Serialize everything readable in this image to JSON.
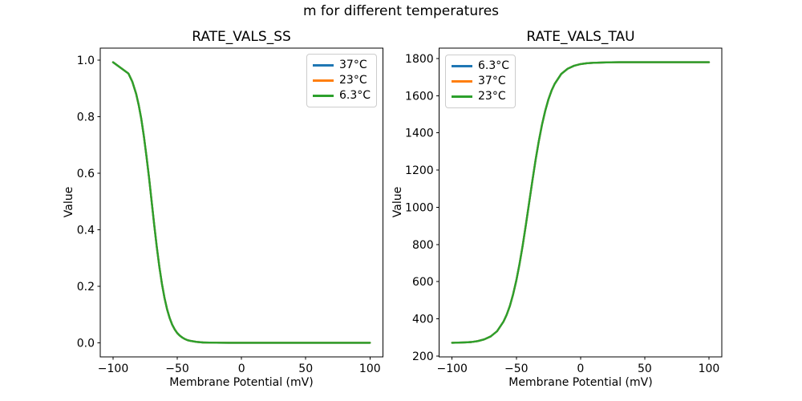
{
  "figure": {
    "suptitle": "m for different temperatures",
    "background_color": "#ffffff",
    "text_color": "#000000",
    "legend_border_color": "#cccccc"
  },
  "chart_data": [
    {
      "type": "line",
      "title": "RATE_VALS_SS",
      "xlabel": "Membrane Potential (mV)",
      "ylabel": "Value",
      "xlim": [
        -110,
        110
      ],
      "ylim": [
        -0.05,
        1.043
      ],
      "grid": false,
      "xticks": [
        -100,
        -50,
        0,
        50,
        100
      ],
      "xtick_labels": [
        "−100",
        "−50",
        "0",
        "50",
        "100"
      ],
      "yticks": [
        0.0,
        0.2,
        0.4,
        0.6,
        0.8,
        1.0
      ],
      "ytick_labels": [
        "0.0",
        "0.2",
        "0.4",
        "0.6",
        "0.8",
        "1.0"
      ],
      "legend": {
        "position": "upper-right",
        "entries": [
          {
            "label": "37°C",
            "color": "#1f77b4"
          },
          {
            "label": "23°C",
            "color": "#ff7f0e"
          },
          {
            "label": "6.3°C",
            "color": "#2ca02c"
          }
        ]
      },
      "overlap_note": "All three temperature curves coincide exactly; the green (last plotted) curve is visible.",
      "x": [
        -100,
        -88,
        -85,
        -82,
        -80,
        -78,
        -76,
        -74,
        -72,
        -70,
        -68,
        -66,
        -64,
        -62,
        -60,
        -58,
        -56,
        -54,
        -52,
        -50,
        -48,
        -46,
        -44,
        -42,
        -40,
        -35,
        -30,
        -25,
        -20,
        -10,
        0,
        20,
        40,
        60,
        80,
        100
      ],
      "series": [
        {
          "name": "37°C",
          "color": "#1f77b4",
          "values": [
            0.993,
            0.953,
            0.924,
            0.881,
            0.841,
            0.792,
            0.731,
            0.661,
            0.583,
            0.5,
            0.417,
            0.339,
            0.269,
            0.209,
            0.159,
            0.119,
            0.088,
            0.064,
            0.047,
            0.034,
            0.025,
            0.018,
            0.013,
            0.009,
            0.007,
            0.003,
            0.001,
            0.0005,
            0.0002,
            0,
            0,
            0,
            0,
            0,
            0,
            0
          ]
        },
        {
          "name": "23°C",
          "color": "#ff7f0e",
          "values": [
            0.993,
            0.953,
            0.924,
            0.881,
            0.841,
            0.792,
            0.731,
            0.661,
            0.583,
            0.5,
            0.417,
            0.339,
            0.269,
            0.209,
            0.159,
            0.119,
            0.088,
            0.064,
            0.047,
            0.034,
            0.025,
            0.018,
            0.013,
            0.009,
            0.007,
            0.003,
            0.001,
            0.0005,
            0.0002,
            0,
            0,
            0,
            0,
            0,
            0,
            0
          ]
        },
        {
          "name": "6.3°C",
          "color": "#2ca02c",
          "values": [
            0.993,
            0.953,
            0.924,
            0.881,
            0.841,
            0.792,
            0.731,
            0.661,
            0.583,
            0.5,
            0.417,
            0.339,
            0.269,
            0.209,
            0.159,
            0.119,
            0.088,
            0.064,
            0.047,
            0.034,
            0.025,
            0.018,
            0.013,
            0.009,
            0.007,
            0.003,
            0.001,
            0.0005,
            0.0002,
            0,
            0,
            0,
            0,
            0,
            0,
            0
          ]
        }
      ]
    },
    {
      "type": "line",
      "title": "RATE_VALS_TAU",
      "xlabel": "Membrane Potential (mV)",
      "ylabel": "Value",
      "xlim": [
        -110,
        110
      ],
      "ylim": [
        195,
        1856
      ],
      "grid": false,
      "xticks": [
        -100,
        -50,
        0,
        50,
        100
      ],
      "xtick_labels": [
        "−100",
        "−50",
        "0",
        "50",
        "100"
      ],
      "yticks": [
        200,
        400,
        600,
        800,
        1000,
        1200,
        1400,
        1600,
        1800
      ],
      "ytick_labels": [
        "200",
        "400",
        "600",
        "800",
        "1000",
        "1200",
        "1400",
        "1600",
        "1800"
      ],
      "legend": {
        "position": "upper-left",
        "entries": [
          {
            "label": "6.3°C",
            "color": "#1f77b4"
          },
          {
            "label": "37°C",
            "color": "#ff7f0e"
          },
          {
            "label": "23°C",
            "color": "#2ca02c"
          }
        ]
      },
      "overlap_note": "All three temperature curves coincide exactly; the green (last plotted) curve is visible.",
      "x": [
        -100,
        -95,
        -90,
        -85,
        -80,
        -75,
        -70,
        -65,
        -60,
        -57.5,
        -55,
        -52.5,
        -50,
        -47.5,
        -45,
        -42.5,
        -40,
        -37.5,
        -35,
        -32.5,
        -30,
        -27.5,
        -25,
        -22.5,
        -20,
        -15,
        -10,
        -5,
        0,
        5,
        10,
        20,
        30,
        40,
        60,
        80,
        100
      ],
      "series": [
        {
          "name": "6.3°C",
          "color": "#1f77b4",
          "values": [
            271,
            272,
            273,
            275,
            280,
            289,
            305,
            333,
            385,
            422,
            470,
            532,
            606,
            695,
            796,
            908,
            1025,
            1142,
            1254,
            1355,
            1444,
            1518,
            1580,
            1628,
            1665,
            1717,
            1745,
            1761,
            1770,
            1775,
            1777,
            1779,
            1780,
            1780,
            1780,
            1780,
            1780
          ]
        },
        {
          "name": "37°C",
          "color": "#ff7f0e",
          "values": [
            271,
            272,
            273,
            275,
            280,
            289,
            305,
            333,
            385,
            422,
            470,
            532,
            606,
            695,
            796,
            908,
            1025,
            1142,
            1254,
            1355,
            1444,
            1518,
            1580,
            1628,
            1665,
            1717,
            1745,
            1761,
            1770,
            1775,
            1777,
            1779,
            1780,
            1780,
            1780,
            1780,
            1780
          ]
        },
        {
          "name": "23°C",
          "color": "#2ca02c",
          "values": [
            271,
            272,
            273,
            275,
            280,
            289,
            305,
            333,
            385,
            422,
            470,
            532,
            606,
            695,
            796,
            908,
            1025,
            1142,
            1254,
            1355,
            1444,
            1518,
            1580,
            1628,
            1665,
            1717,
            1745,
            1761,
            1770,
            1775,
            1777,
            1779,
            1780,
            1780,
            1780,
            1780,
            1780
          ]
        }
      ]
    }
  ]
}
